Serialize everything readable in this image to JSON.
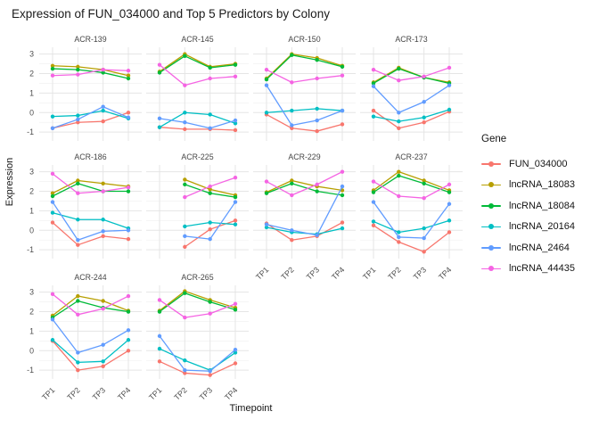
{
  "title": "Expression of FUN_034000 and Top 5 Predictors by Colony",
  "axes": {
    "x_title": "Timepoint",
    "y_title": "Expression",
    "x_tick_labels": [
      "TP1",
      "TP2",
      "TP3",
      "TP4"
    ],
    "y_tick_labels": [
      "3",
      "2",
      "1",
      "0",
      "-1"
    ]
  },
  "legend": {
    "title": "Gene"
  },
  "genes": [
    {
      "name": "FUN_034000",
      "color": "#F8766D"
    },
    {
      "name": "lncRNA_18083",
      "color": "#B79F00"
    },
    {
      "name": "lncRNA_18084",
      "color": "#00BA38"
    },
    {
      "name": "lncRNA_20164",
      "color": "#00BFC4"
    },
    {
      "name": "lncRNA_2464",
      "color": "#619CFF"
    },
    {
      "name": "lncRNA_44435",
      "color": "#F564E3"
    }
  ],
  "chart_data": {
    "type": "line",
    "facet_by": "Colony",
    "x": [
      "TP1",
      "TP2",
      "TP3",
      "TP4"
    ],
    "xlabel": "Timepoint",
    "ylabel": "Expression",
    "ylim": [
      -1.45,
      3.35
    ],
    "y_major_gridlines": [
      3,
      2,
      1,
      0,
      -1
    ],
    "y_minor_gridlines": [
      2.5,
      1.5,
      0.5,
      -0.5
    ],
    "legend_position": "right",
    "facets": [
      {
        "label": "ACR-139",
        "values": {
          "FUN_034000": [
            -0.8,
            -0.5,
            -0.45,
            0.0
          ],
          "lncRNA_18083": [
            2.4,
            2.35,
            2.2,
            1.9
          ],
          "lncRNA_18084": [
            2.25,
            2.2,
            2.05,
            1.75
          ],
          "lncRNA_20164": [
            -0.2,
            -0.15,
            0.1,
            -0.3
          ],
          "lncRNA_2464": [
            -0.8,
            -0.35,
            0.3,
            -0.25
          ],
          "lncRNA_44435": [
            1.9,
            1.95,
            2.2,
            2.15
          ]
        }
      },
      {
        "label": "ACR-145",
        "values": {
          "FUN_034000": [
            -0.75,
            -0.85,
            -0.85,
            -0.9
          ],
          "lncRNA_18083": [
            2.1,
            3.0,
            2.35,
            2.5
          ],
          "lncRNA_18084": [
            2.05,
            2.9,
            2.3,
            2.45
          ],
          "lncRNA_20164": [
            -0.75,
            0.0,
            -0.1,
            -0.55
          ],
          "lncRNA_2464": [
            -0.3,
            -0.5,
            -0.8,
            -0.4
          ],
          "lncRNA_44435": [
            2.45,
            1.4,
            1.75,
            1.85
          ]
        }
      },
      {
        "label": "ACR-150",
        "values": {
          "FUN_034000": [
            -0.1,
            -0.8,
            -0.95,
            -0.6
          ],
          "lncRNA_18083": [
            1.75,
            3.0,
            2.8,
            2.4
          ],
          "lncRNA_18084": [
            1.7,
            2.95,
            2.7,
            2.35
          ],
          "lncRNA_20164": [
            0.0,
            0.1,
            0.2,
            0.1
          ],
          "lncRNA_2464": [
            1.4,
            -0.65,
            -0.4,
            0.1
          ],
          "lncRNA_44435": [
            2.2,
            1.55,
            1.75,
            1.9
          ]
        }
      },
      {
        "label": "ACR-173",
        "values": {
          "FUN_034000": [
            0.1,
            -0.8,
            -0.5,
            0.05
          ],
          "lncRNA_18083": [
            1.55,
            2.3,
            1.8,
            1.55
          ],
          "lncRNA_18084": [
            1.5,
            2.25,
            1.8,
            1.5
          ],
          "lncRNA_20164": [
            -0.2,
            -0.45,
            -0.25,
            0.15
          ],
          "lncRNA_2464": [
            1.35,
            0.0,
            0.55,
            1.4
          ],
          "lncRNA_44435": [
            2.2,
            1.65,
            1.85,
            2.3
          ]
        }
      },
      {
        "label": "ACR-186",
        "values": {
          "FUN_034000": [
            0.4,
            -0.75,
            -0.3,
            -0.45
          ],
          "lncRNA_18083": [
            1.9,
            2.55,
            2.4,
            2.25
          ],
          "lncRNA_18084": [
            1.75,
            2.4,
            2.0,
            2.0
          ],
          "lncRNA_20164": [
            0.9,
            0.55,
            0.55,
            0.1
          ],
          "lncRNA_2464": [
            1.45,
            -0.5,
            -0.05,
            0.0
          ],
          "lncRNA_44435": [
            2.9,
            1.9,
            2.0,
            2.2
          ]
        }
      },
      {
        "label": "ACR-225",
        "values": {
          "FUN_034000": [
            null,
            -0.85,
            0.05,
            0.5
          ],
          "lncRNA_18083": [
            null,
            2.6,
            2.1,
            1.8
          ],
          "lncRNA_18084": [
            null,
            2.35,
            1.9,
            1.7
          ],
          "lncRNA_20164": [
            null,
            0.2,
            0.4,
            0.3
          ],
          "lncRNA_2464": [
            null,
            -0.3,
            -0.45,
            1.45
          ],
          "lncRNA_44435": [
            null,
            1.7,
            2.25,
            2.7
          ]
        }
      },
      {
        "label": "ACR-229",
        "values": {
          "FUN_034000": [
            0.35,
            -0.5,
            -0.3,
            0.4
          ],
          "lncRNA_18083": [
            1.95,
            2.55,
            2.25,
            2.05
          ],
          "lncRNA_18084": [
            1.9,
            2.4,
            2.0,
            1.8
          ],
          "lncRNA_20164": [
            0.15,
            -0.1,
            -0.2,
            0.1
          ],
          "lncRNA_2464": [
            0.3,
            0.0,
            -0.25,
            2.25
          ],
          "lncRNA_44435": [
            2.5,
            1.8,
            2.35,
            3.0
          ]
        }
      },
      {
        "label": "ACR-237",
        "values": {
          "FUN_034000": [
            0.25,
            -0.6,
            -1.1,
            -0.1
          ],
          "lncRNA_18083": [
            2.05,
            3.0,
            2.55,
            2.05
          ],
          "lncRNA_18084": [
            1.95,
            2.8,
            2.4,
            1.95
          ],
          "lncRNA_20164": [
            0.45,
            -0.1,
            0.1,
            0.5
          ],
          "lncRNA_2464": [
            1.45,
            -0.35,
            -0.4,
            1.35
          ],
          "lncRNA_44435": [
            2.5,
            1.75,
            1.65,
            2.35
          ]
        }
      },
      {
        "label": "ACR-244",
        "values": {
          "FUN_034000": [
            0.5,
            -1.0,
            -0.8,
            0.0
          ],
          "lncRNA_18083": [
            1.8,
            2.8,
            2.55,
            2.05
          ],
          "lncRNA_18084": [
            1.7,
            2.55,
            2.2,
            2.0
          ],
          "lncRNA_20164": [
            0.55,
            -0.6,
            -0.55,
            0.55
          ],
          "lncRNA_2464": [
            1.6,
            -0.1,
            0.3,
            1.05
          ],
          "lncRNA_44435": [
            2.9,
            1.85,
            2.15,
            2.8
          ]
        }
      },
      {
        "label": "ACR-265",
        "values": {
          "FUN_034000": [
            -0.55,
            -1.15,
            -1.25,
            -0.65
          ],
          "lncRNA_18083": [
            2.05,
            3.05,
            2.6,
            2.2
          ],
          "lncRNA_18084": [
            2.0,
            2.95,
            2.5,
            2.1
          ],
          "lncRNA_20164": [
            0.1,
            -0.5,
            -1.0,
            -0.1
          ],
          "lncRNA_2464": [
            0.75,
            -1.0,
            -1.05,
            0.05
          ],
          "lncRNA_44435": [
            2.6,
            1.7,
            1.9,
            2.4
          ]
        }
      }
    ]
  }
}
